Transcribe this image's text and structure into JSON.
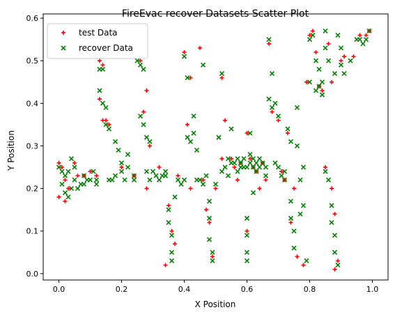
{
  "chart_data": {
    "type": "scatter",
    "title": "FireEvac recover Datasets Scatter Plot",
    "xlabel": "X Position",
    "ylabel": "Y Position",
    "xlim": [
      -0.05,
      1.05
    ],
    "ylim": [
      -0.015,
      0.61
    ],
    "xticks": [
      0.0,
      0.2,
      0.4,
      0.6,
      0.8,
      1.0
    ],
    "xtick_labels": [
      "0.0",
      "0.2",
      "0.4",
      "0.6",
      "0.8",
      "1.0"
    ],
    "yticks": [
      0.0,
      0.1,
      0.2,
      0.3,
      0.4,
      0.5,
      0.6
    ],
    "ytick_labels": [
      "0.0",
      "0.1",
      "0.2",
      "0.3",
      "0.4",
      "0.5",
      "0.6"
    ],
    "grid": false,
    "legend_position": "top-left",
    "series": [
      {
        "name": "test Data",
        "color": "#ff0000",
        "marker": "plus",
        "points": [
          [
            0.0,
            0.26
          ],
          [
            0.01,
            0.25
          ],
          [
            0.02,
            0.22
          ],
          [
            0.0,
            0.18
          ],
          [
            0.03,
            0.2
          ],
          [
            0.05,
            0.26
          ],
          [
            0.08,
            0.23
          ],
          [
            0.1,
            0.24
          ],
          [
            0.12,
            0.23
          ],
          [
            0.13,
            0.5
          ],
          [
            0.14,
            0.49
          ],
          [
            0.13,
            0.41
          ],
          [
            0.14,
            0.36
          ],
          [
            0.15,
            0.36
          ],
          [
            0.16,
            0.35
          ],
          [
            0.2,
            0.25
          ],
          [
            0.24,
            0.23
          ],
          [
            0.26,
            0.5
          ],
          [
            0.27,
            0.38
          ],
          [
            0.28,
            0.43
          ],
          [
            0.29,
            0.3
          ],
          [
            0.28,
            0.2
          ],
          [
            0.32,
            0.25
          ],
          [
            0.34,
            0.02
          ],
          [
            0.35,
            0.16
          ],
          [
            0.36,
            0.1
          ],
          [
            0.37,
            0.07
          ],
          [
            0.38,
            0.23
          ],
          [
            0.4,
            0.52
          ],
          [
            0.41,
            0.35
          ],
          [
            0.42,
            0.46
          ],
          [
            0.42,
            0.2
          ],
          [
            0.45,
            0.53
          ],
          [
            0.47,
            0.15
          ],
          [
            0.48,
            0.12
          ],
          [
            0.49,
            0.04
          ],
          [
            0.5,
            0.2
          ],
          [
            0.52,
            0.27
          ],
          [
            0.52,
            0.46
          ],
          [
            0.53,
            0.36
          ],
          [
            0.55,
            0.27
          ],
          [
            0.56,
            0.25
          ],
          [
            0.57,
            0.22
          ],
          [
            0.58,
            0.26
          ],
          [
            0.6,
            0.33
          ],
          [
            0.6,
            0.1
          ],
          [
            0.61,
            0.27
          ],
          [
            0.62,
            0.25
          ],
          [
            0.63,
            0.24
          ],
          [
            0.64,
            0.2
          ],
          [
            0.66,
            0.22
          ],
          [
            0.67,
            0.54
          ],
          [
            0.68,
            0.38
          ],
          [
            0.7,
            0.36
          ],
          [
            0.71,
            0.24
          ],
          [
            0.72,
            0.22
          ],
          [
            0.73,
            0.33
          ],
          [
            0.74,
            0.12
          ],
          [
            0.75,
            0.2
          ],
          [
            0.76,
            0.04
          ],
          [
            0.78,
            0.02
          ],
          [
            0.79,
            0.45
          ],
          [
            0.8,
            0.56
          ],
          [
            0.81,
            0.57
          ],
          [
            0.82,
            0.52
          ],
          [
            0.83,
            0.44
          ],
          [
            0.84,
            0.43
          ],
          [
            0.85,
            0.25
          ],
          [
            0.86,
            0.54
          ],
          [
            0.87,
            0.2
          ],
          [
            0.88,
            0.14
          ],
          [
            0.88,
            0.01
          ],
          [
            0.89,
            0.03
          ],
          [
            0.9,
            0.5
          ],
          [
            0.94,
            0.51
          ],
          [
            0.96,
            0.56
          ],
          [
            0.98,
            0.56
          ],
          [
            0.99,
            0.57
          ],
          [
            0.02,
            0.17
          ],
          [
            0.06,
            0.23
          ],
          [
            0.46,
            0.22
          ],
          [
            0.65,
            0.26
          ],
          [
            0.87,
            0.45
          ],
          [
            0.91,
            0.51
          ]
        ]
      },
      {
        "name": "recover Data",
        "color": "#008000",
        "marker": "cross",
        "points": [
          [
            0.0,
            0.25
          ],
          [
            0.01,
            0.24
          ],
          [
            0.01,
            0.21
          ],
          [
            0.02,
            0.23
          ],
          [
            0.02,
            0.19
          ],
          [
            0.03,
            0.18
          ],
          [
            0.03,
            0.24
          ],
          [
            0.04,
            0.2
          ],
          [
            0.04,
            0.27
          ],
          [
            0.05,
            0.22
          ],
          [
            0.06,
            0.2
          ],
          [
            0.07,
            0.21
          ],
          [
            0.08,
            0.23
          ],
          [
            0.09,
            0.22
          ],
          [
            0.1,
            0.22
          ],
          [
            0.11,
            0.24
          ],
          [
            0.12,
            0.22
          ],
          [
            0.13,
            0.48
          ],
          [
            0.14,
            0.48
          ],
          [
            0.13,
            0.43
          ],
          [
            0.14,
            0.4
          ],
          [
            0.15,
            0.39
          ],
          [
            0.15,
            0.35
          ],
          [
            0.16,
            0.34
          ],
          [
            0.16,
            0.22
          ],
          [
            0.17,
            0.22
          ],
          [
            0.18,
            0.31
          ],
          [
            0.19,
            0.29
          ],
          [
            0.2,
            0.26
          ],
          [
            0.2,
            0.24
          ],
          [
            0.21,
            0.22
          ],
          [
            0.22,
            0.28
          ],
          [
            0.24,
            0.23
          ],
          [
            0.25,
            0.5
          ],
          [
            0.26,
            0.49
          ],
          [
            0.27,
            0.48
          ],
          [
            0.26,
            0.37
          ],
          [
            0.27,
            0.35
          ],
          [
            0.28,
            0.32
          ],
          [
            0.29,
            0.31
          ],
          [
            0.28,
            0.24
          ],
          [
            0.29,
            0.22
          ],
          [
            0.3,
            0.24
          ],
          [
            0.31,
            0.23
          ],
          [
            0.32,
            0.22
          ],
          [
            0.33,
            0.23
          ],
          [
            0.34,
            0.23
          ],
          [
            0.35,
            0.15
          ],
          [
            0.35,
            0.12
          ],
          [
            0.36,
            0.09
          ],
          [
            0.36,
            0.05
          ],
          [
            0.36,
            0.03
          ],
          [
            0.37,
            0.18
          ],
          [
            0.38,
            0.22
          ],
          [
            0.39,
            0.21
          ],
          [
            0.4,
            0.51
          ],
          [
            0.41,
            0.46
          ],
          [
            0.41,
            0.32
          ],
          [
            0.42,
            0.31
          ],
          [
            0.43,
            0.37
          ],
          [
            0.43,
            0.33
          ],
          [
            0.44,
            0.22
          ],
          [
            0.45,
            0.22
          ],
          [
            0.46,
            0.21
          ],
          [
            0.46,
            0.49
          ],
          [
            0.47,
            0.23
          ],
          [
            0.48,
            0.17
          ],
          [
            0.48,
            0.13
          ],
          [
            0.48,
            0.08
          ],
          [
            0.49,
            0.05
          ],
          [
            0.49,
            0.03
          ],
          [
            0.5,
            0.21
          ],
          [
            0.51,
            0.32
          ],
          [
            0.52,
            0.47
          ],
          [
            0.53,
            0.25
          ],
          [
            0.54,
            0.27
          ],
          [
            0.54,
            0.23
          ],
          [
            0.55,
            0.26
          ],
          [
            0.55,
            0.34
          ],
          [
            0.56,
            0.26
          ],
          [
            0.57,
            0.27
          ],
          [
            0.57,
            0.24
          ],
          [
            0.58,
            0.26
          ],
          [
            0.59,
            0.27
          ],
          [
            0.59,
            0.25
          ],
          [
            0.6,
            0.25
          ],
          [
            0.6,
            0.13
          ],
          [
            0.6,
            0.09
          ],
          [
            0.6,
            0.05
          ],
          [
            0.6,
            0.03
          ],
          [
            0.61,
            0.28
          ],
          [
            0.61,
            0.26
          ],
          [
            0.61,
            0.33
          ],
          [
            0.62,
            0.27
          ],
          [
            0.62,
            0.25
          ],
          [
            0.62,
            0.19
          ],
          [
            0.63,
            0.26
          ],
          [
            0.63,
            0.24
          ],
          [
            0.64,
            0.27
          ],
          [
            0.64,
            0.25
          ],
          [
            0.65,
            0.26
          ],
          [
            0.66,
            0.23
          ],
          [
            0.67,
            0.55
          ],
          [
            0.67,
            0.41
          ],
          [
            0.68,
            0.47
          ],
          [
            0.68,
            0.39
          ],
          [
            0.69,
            0.4
          ],
          [
            0.7,
            0.25
          ],
          [
            0.7,
            0.37
          ],
          [
            0.71,
            0.23
          ],
          [
            0.72,
            0.22
          ],
          [
            0.73,
            0.34
          ],
          [
            0.74,
            0.31
          ],
          [
            0.74,
            0.17
          ],
          [
            0.74,
            0.13
          ],
          [
            0.75,
            0.1
          ],
          [
            0.75,
            0.06
          ],
          [
            0.76,
            0.3
          ],
          [
            0.76,
            0.39
          ],
          [
            0.77,
            0.22
          ],
          [
            0.77,
            0.14
          ],
          [
            0.78,
            0.16
          ],
          [
            0.79,
            0.03
          ],
          [
            0.8,
            0.45
          ],
          [
            0.8,
            0.55
          ],
          [
            0.81,
            0.56
          ],
          [
            0.82,
            0.5
          ],
          [
            0.83,
            0.48
          ],
          [
            0.83,
            0.44
          ],
          [
            0.84,
            0.42
          ],
          [
            0.85,
            0.57
          ],
          [
            0.85,
            0.53
          ],
          [
            0.85,
            0.24
          ],
          [
            0.86,
            0.5
          ],
          [
            0.86,
            0.22
          ],
          [
            0.87,
            0.16
          ],
          [
            0.87,
            0.12
          ],
          [
            0.88,
            0.09
          ],
          [
            0.88,
            0.05
          ],
          [
            0.89,
            0.02
          ],
          [
            0.89,
            0.56
          ],
          [
            0.9,
            0.49
          ],
          [
            0.91,
            0.47
          ],
          [
            0.95,
            0.55
          ],
          [
            0.96,
            0.55
          ],
          [
            0.97,
            0.54
          ],
          [
            0.98,
            0.55
          ],
          [
            0.99,
            0.57
          ],
          [
            0.05,
            0.25
          ],
          [
            0.18,
            0.23
          ],
          [
            0.22,
            0.25
          ],
          [
            0.34,
            0.24
          ],
          [
            0.44,
            0.29
          ],
          [
            0.58,
            0.25
          ],
          [
            0.66,
            0.25
          ],
          [
            0.69,
            0.26
          ],
          [
            0.72,
            0.24
          ],
          [
            0.78,
            0.25
          ],
          [
            0.82,
            0.43
          ],
          [
            0.84,
            0.45
          ],
          [
            0.88,
            0.47
          ],
          [
            0.9,
            0.53
          ],
          [
            0.93,
            0.5
          ],
          [
            0.08,
            0.21
          ],
          [
            0.12,
            0.21
          ],
          [
            0.24,
            0.22
          ],
          [
            0.4,
            0.22
          ],
          [
            0.52,
            0.24
          ]
        ]
      }
    ]
  }
}
